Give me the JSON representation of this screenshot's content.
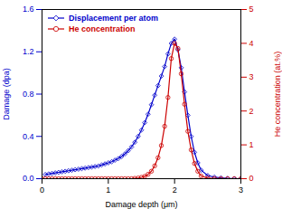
{
  "chart_data": {
    "type": "line",
    "xlabel": "Damage depth (μm)",
    "ylabel": "Damage (dpa)",
    "y2label": "He concentration (at.%)",
    "xlim": [
      0,
      3
    ],
    "xticks": [
      0,
      1,
      2,
      3
    ],
    "ylim": [
      0,
      1.6
    ],
    "yticks": [
      {
        "value": 0,
        "label": "0.0"
      },
      0.4,
      0.8,
      1.2,
      1.6
    ],
    "y2lim": [
      0,
      5
    ],
    "y2ticks": [
      0,
      1,
      2,
      3,
      4,
      5
    ],
    "legend": "upper left",
    "series": [
      {
        "name": "Displacement per atom",
        "color": "#0000cc",
        "marker": "diamond",
        "x": [
          0.05,
          0.1,
          0.15,
          0.2,
          0.25,
          0.3,
          0.35,
          0.4,
          0.45,
          0.5,
          0.55,
          0.6,
          0.65,
          0.7,
          0.75,
          0.8,
          0.85,
          0.9,
          0.95,
          1.0,
          1.05,
          1.1,
          1.15,
          1.2,
          1.25,
          1.3,
          1.35,
          1.4,
          1.45,
          1.5,
          1.55,
          1.6,
          1.65,
          1.7,
          1.75,
          1.8,
          1.85,
          1.9,
          1.95,
          2.0,
          2.05,
          2.1,
          2.15,
          2.2,
          2.25,
          2.3,
          2.35,
          2.4,
          2.5,
          2.6,
          2.7,
          2.8,
          2.9,
          3.0
        ],
        "values": [
          0.04,
          0.045,
          0.05,
          0.055,
          0.06,
          0.065,
          0.07,
          0.075,
          0.08,
          0.085,
          0.09,
          0.095,
          0.1,
          0.105,
          0.11,
          0.115,
          0.12,
          0.13,
          0.14,
          0.15,
          0.16,
          0.175,
          0.19,
          0.21,
          0.235,
          0.265,
          0.3,
          0.345,
          0.4,
          0.46,
          0.53,
          0.61,
          0.7,
          0.79,
          0.88,
          0.97,
          1.06,
          1.18,
          1.28,
          1.32,
          1.22,
          1.05,
          0.82,
          0.6,
          0.4,
          0.25,
          0.15,
          0.08,
          0.03,
          0.015,
          0.008,
          0.003,
          0.001,
          0.0
        ]
      },
      {
        "name": "He concentration",
        "color": "#cc0000",
        "marker": "circle",
        "axis": "y2",
        "x": [
          0.0,
          0.05,
          0.1,
          0.15,
          0.2,
          0.25,
          0.3,
          0.35,
          0.4,
          0.45,
          0.5,
          0.55,
          0.6,
          0.65,
          0.7,
          0.75,
          0.8,
          0.85,
          0.9,
          0.95,
          1.0,
          1.05,
          1.1,
          1.15,
          1.2,
          1.25,
          1.3,
          1.35,
          1.4,
          1.45,
          1.5,
          1.55,
          1.6,
          1.65,
          1.7,
          1.75,
          1.8,
          1.85,
          1.9,
          1.95,
          2.0,
          2.05,
          2.1,
          2.15,
          2.2,
          2.25,
          2.3,
          2.35,
          2.4,
          2.5,
          2.6,
          2.7,
          2.8,
          2.9,
          3.0
        ],
        "values": [
          0.0,
          0.0,
          0.0,
          0.0,
          0.0,
          0.0,
          0.0,
          0.0,
          0.0,
          0.0,
          0.0,
          0.0,
          0.0,
          0.0,
          0.0,
          0.0,
          0.0,
          0.0,
          0.0,
          0.0,
          0.0,
          0.0,
          0.0,
          0.0,
          0.0,
          0.0,
          0.0,
          0.0,
          0.01,
          0.02,
          0.04,
          0.07,
          0.13,
          0.22,
          0.38,
          0.62,
          0.98,
          1.55,
          2.4,
          3.55,
          4.0,
          3.85,
          3.1,
          2.2,
          1.4,
          0.85,
          0.45,
          0.22,
          0.08,
          0.02,
          0.005,
          0.001,
          0.0,
          0.0,
          0.0
        ]
      }
    ]
  }
}
